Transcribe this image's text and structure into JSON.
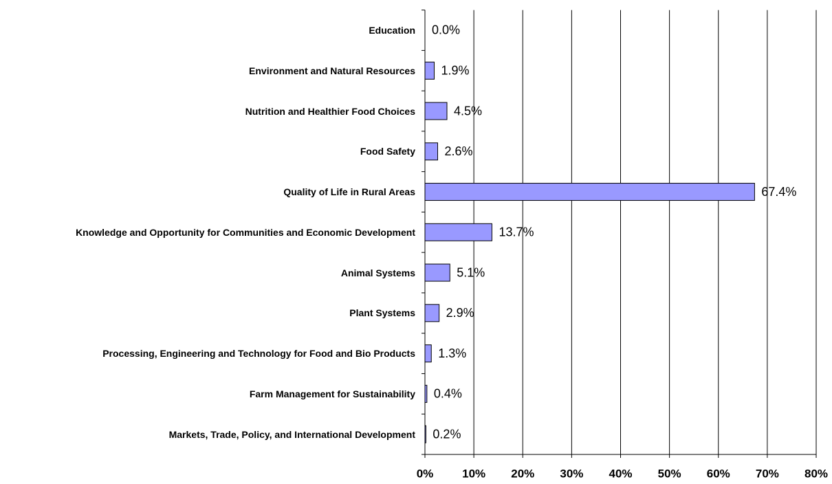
{
  "chart_data": {
    "type": "bar",
    "orientation": "horizontal",
    "categories": [
      "Education",
      "Environment and Natural Resources",
      "Nutrition and Healthier Food Choices",
      "Food Safety",
      "Quality of Life in Rural Areas",
      "Knowledge and Opportunity for Communities and Economic Development",
      "Animal Systems",
      "Plant Systems",
      "Processing, Engineering and Technology for Food and Bio Products",
      "Farm Management for Sustainability",
      "Markets, Trade, Policy, and International Development"
    ],
    "values": [
      0.0,
      1.9,
      4.5,
      2.6,
      67.4,
      13.7,
      5.1,
      2.9,
      1.3,
      0.4,
      0.2
    ],
    "value_labels": [
      "0.0%",
      "1.9%",
      "4.5%",
      "2.6%",
      "67.4%",
      "13.7%",
      "5.1%",
      "2.9%",
      "1.3%",
      "0.4%",
      "0.2%"
    ],
    "color": "#9999ff",
    "xlim": [
      0,
      80
    ],
    "xticks": [
      {
        "value": 0,
        "label": "0%"
      },
      {
        "value": 10,
        "label": "10%"
      },
      {
        "value": 20,
        "label": "20%"
      },
      {
        "value": 30,
        "label": "30%"
      },
      {
        "value": 40,
        "label": "40%"
      },
      {
        "value": 50,
        "label": "50%"
      },
      {
        "value": 60,
        "label": "60%"
      },
      {
        "value": 70,
        "label": "70%"
      },
      {
        "value": 80,
        "label": "80%"
      }
    ],
    "grid": true
  }
}
